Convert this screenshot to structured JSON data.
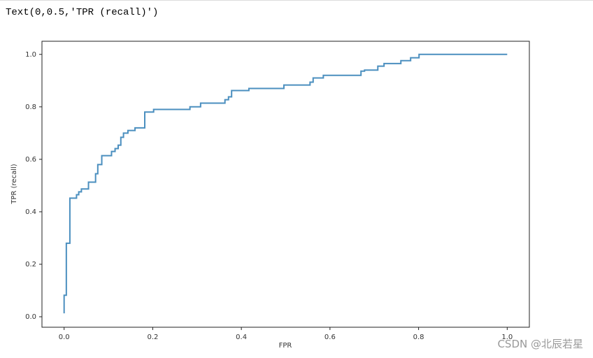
{
  "output_text": "Text(0,0.5,'TPR (recall)')",
  "watermark": "CSDN @北辰若星",
  "chart_data": {
    "type": "line",
    "xlabel": "FPR",
    "ylabel": "TPR (recall)",
    "xlim": [
      -0.05,
      1.05
    ],
    "ylim": [
      -0.04,
      1.05
    ],
    "xticks": [
      {
        "value": 0,
        "label": "0.0"
      },
      {
        "value": 0.2,
        "label": "0.2"
      },
      {
        "value": 0.4,
        "label": "0.4"
      },
      {
        "value": 0.6,
        "label": "0.6"
      },
      {
        "value": 0.8,
        "label": "0.8"
      },
      {
        "value": 1,
        "label": "1.0"
      }
    ],
    "yticks": [
      {
        "value": 0,
        "label": "0.0"
      },
      {
        "value": 0.2,
        "label": "0.2"
      },
      {
        "value": 0.4,
        "label": "0.4"
      },
      {
        "value": 0.6,
        "label": "0.6"
      },
      {
        "value": 0.8,
        "label": "0.8"
      },
      {
        "value": 1,
        "label": "1.0"
      }
    ],
    "color": "#4b8fbf",
    "x": [
      0,
      0,
      0.005,
      0.005,
      0.013,
      0.013,
      0.028,
      0.028,
      0.033,
      0.033,
      0.039,
      0.039,
      0.055,
      0.055,
      0.071,
      0.071,
      0.076,
      0.076,
      0.085,
      0.085,
      0.107,
      0.107,
      0.115,
      0.115,
      0.122,
      0.122,
      0.128,
      0.128,
      0.134,
      0.134,
      0.144,
      0.144,
      0.16,
      0.16,
      0.182,
      0.182,
      0.202,
      0.202,
      0.284,
      0.284,
      0.308,
      0.308,
      0.363,
      0.363,
      0.371,
      0.371,
      0.378,
      0.378,
      0.417,
      0.417,
      0.496,
      0.496,
      0.555,
      0.555,
      0.562,
      0.562,
      0.585,
      0.585,
      0.67,
      0.67,
      0.678,
      0.678,
      0.708,
      0.708,
      0.722,
      0.722,
      0.76,
      0.76,
      0.782,
      0.782,
      0.801,
      0.801,
      1.0
    ],
    "values": [
      0.013,
      0.082,
      0.082,
      0.28,
      0.28,
      0.452,
      0.452,
      0.465,
      0.465,
      0.476,
      0.476,
      0.487,
      0.487,
      0.513,
      0.513,
      0.545,
      0.545,
      0.58,
      0.58,
      0.614,
      0.614,
      0.63,
      0.63,
      0.641,
      0.641,
      0.654,
      0.654,
      0.684,
      0.684,
      0.7,
      0.7,
      0.71,
      0.71,
      0.72,
      0.72,
      0.78,
      0.78,
      0.79,
      0.79,
      0.8,
      0.8,
      0.814,
      0.814,
      0.827,
      0.827,
      0.838,
      0.838,
      0.862,
      0.862,
      0.87,
      0.87,
      0.883,
      0.883,
      0.894,
      0.894,
      0.91,
      0.91,
      0.92,
      0.92,
      0.936,
      0.936,
      0.94,
      0.94,
      0.955,
      0.955,
      0.965,
      0.965,
      0.976,
      0.976,
      0.987,
      0.987,
      1.0,
      1.0
    ]
  }
}
